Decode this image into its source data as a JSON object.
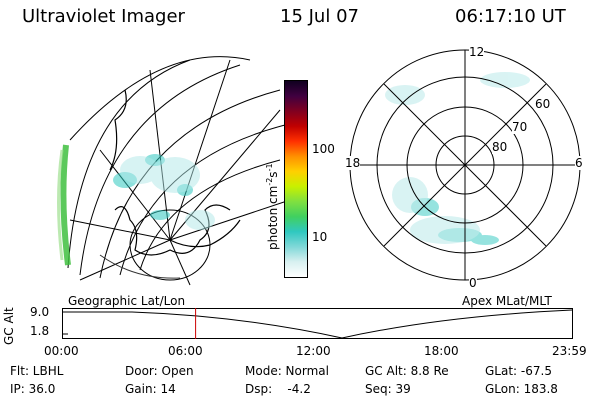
{
  "header": {
    "title": "Ultraviolet Imager",
    "date": "15 Jul 07",
    "time": "06:17:10 UT"
  },
  "geo_panel": {
    "label": "Geographic Lat/Lon"
  },
  "polar_panel": {
    "label": "Apex MLat/MLT",
    "mlt_labels": [
      "12",
      "18",
      "6",
      "0"
    ],
    "lat_labels": [
      "60",
      "70",
      "80"
    ]
  },
  "colorbar": {
    "unit_label": "photon cm",
    "unit_sup1": "-2",
    "unit_mid": "s",
    "unit_sup2": "-1",
    "tick_labels": [
      "100",
      "10"
    ],
    "colors": [
      "#ffffff",
      "#d8f0f0",
      "#80d8d8",
      "#30c8c0",
      "#40d060",
      "#80e040",
      "#c8f000",
      "#ffd000",
      "#ff9000",
      "#ff3000",
      "#c00000",
      "#800020",
      "#400040",
      "#100020"
    ]
  },
  "altitude_plot": {
    "axis_title": "GC Alt",
    "y_ticks": [
      "9.0",
      "1.8"
    ],
    "x_ticks": [
      "00:00",
      "06:00",
      "12:00",
      "18:00",
      "23:59"
    ],
    "marker_time": "06:17:10",
    "marker_color": "#cc0000"
  },
  "info": {
    "flt": "Flt: LBHL",
    "ip": "IP: 36.0",
    "door": "Door: Open",
    "gain": "Gain: 14",
    "mode": "Mode: Normal",
    "dsp": "Dsp:    -4.2",
    "gcalt": "GC Alt: 8.8 Re",
    "seq": "Seq: 39",
    "glat": "GLat: -67.5",
    "glon": "GLon: 183.8"
  }
}
